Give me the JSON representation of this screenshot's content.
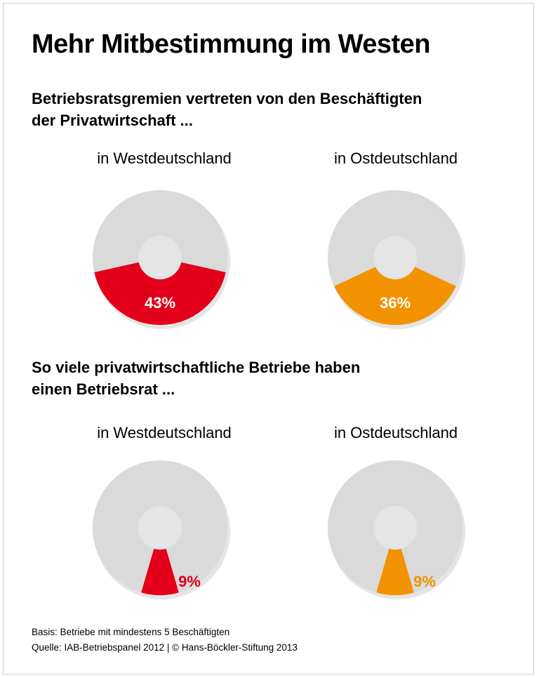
{
  "title": "Mehr Mitbestimmung im Westen",
  "colors": {
    "west": "#e2001a",
    "east": "#f39200",
    "rest": "#dadada"
  },
  "chart_data": [
    {
      "type": "pie",
      "section_title_lines": [
        "Betriebsratsgremien vertreten von den Beschäftigten",
        "der Privatwirtschaft ..."
      ],
      "panels": [
        {
          "label": "in Westdeutschland",
          "value": 43,
          "value_label": "43%",
          "color": "#e2001a"
        },
        {
          "label": "in Ostdeutschland",
          "value": 36,
          "value_label": "36%",
          "color": "#f39200"
        }
      ]
    },
    {
      "type": "pie",
      "section_title_lines": [
        "So viele privatwirtschaftliche Betriebe haben",
        "einen Betriebsrat  ..."
      ],
      "panels": [
        {
          "label": "in Westdeutschland",
          "value": 9,
          "value_label": "9%",
          "color": "#e2001a"
        },
        {
          "label": "in Ostdeutschland",
          "value": 9,
          "value_label": "9%",
          "color": "#f39200"
        }
      ]
    }
  ],
  "footer": {
    "basis": "Basis: Betriebe mit mindestens 5 Beschäftigten",
    "source": "Quelle: IAB-Betriebspanel 2012 | © Hans-Böckler-Stiftung 2013"
  }
}
